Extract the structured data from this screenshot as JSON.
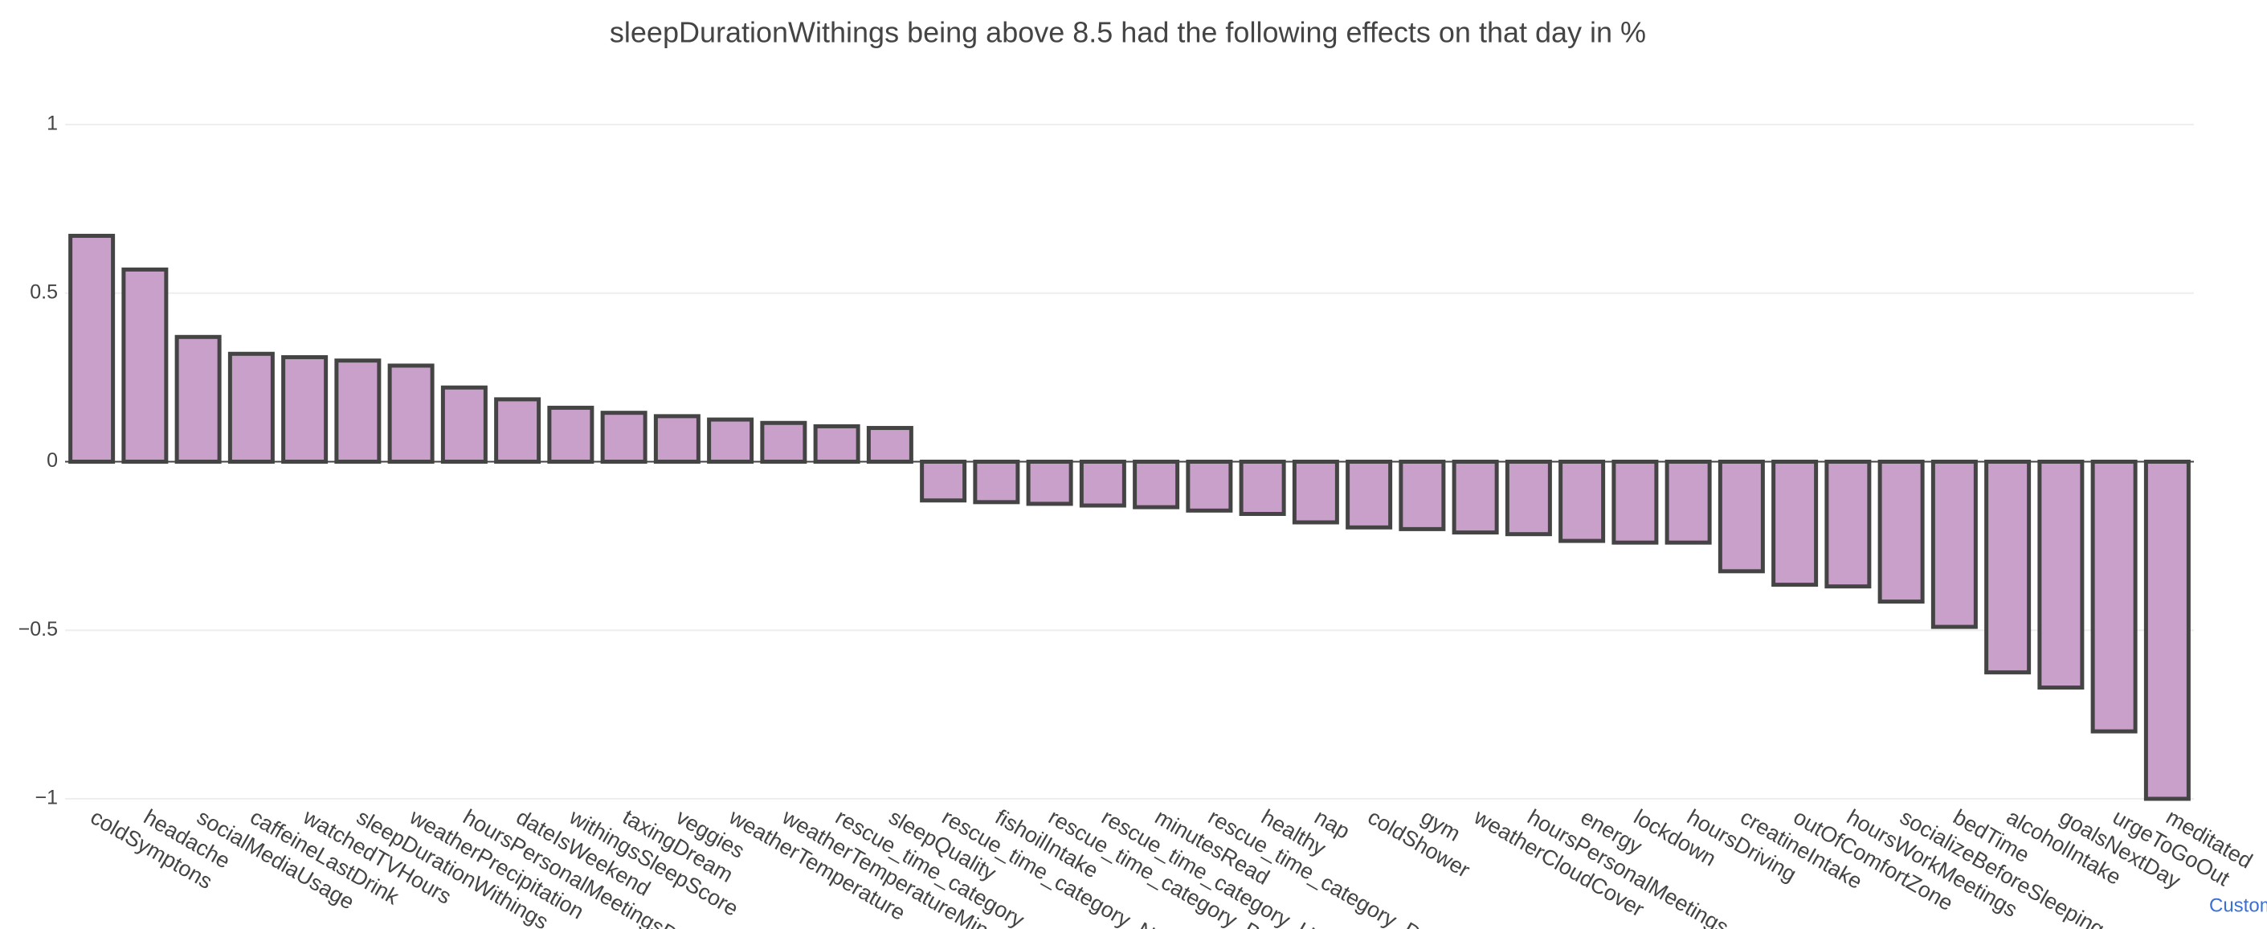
{
  "chart_data": {
    "type": "bar",
    "title": "sleepDurationWithings being above 8.5 had the following effects on that day in %",
    "categories": [
      "coldSymptons",
      "headache",
      "socialMediaUsage",
      "caffeineLastDrink",
      "watchedTVHours",
      "sleepDurationWithings",
      "weatherPrecipitation",
      "hoursPersonalMeetingsD",
      "dateIsWeekend",
      "withingsSleepScore",
      "taxingDream",
      "veggies",
      "weatherTemperature",
      "weatherTemperatureMin",
      "rescue_time_category",
      "sleepQuality",
      "rescue_time_category_N",
      "fishoilIntake",
      "rescue_time_category_B",
      "rescue_time_category_U",
      "minutesRead",
      "rescue_time_category_D",
      "healthy",
      "nap",
      "coldShower",
      "gym",
      "weatherCloudCover",
      "hoursPersonalMeetings",
      "energy",
      "lockdown",
      "hoursDriving",
      "creatineIntake",
      "outOfComfortZone",
      "hoursWorkMeetings",
      "socializeBeforeSleeping",
      "bedTime",
      "alcoholIntake",
      "goalsNextDay",
      "urgeToGoOut",
      "meditated"
    ],
    "values": [
      0.67,
      0.57,
      0.37,
      0.32,
      0.31,
      0.3,
      0.285,
      0.22,
      0.185,
      0.16,
      0.145,
      0.135,
      0.125,
      0.115,
      0.105,
      0.1,
      -0.115,
      -0.12,
      -0.125,
      -0.13,
      -0.135,
      -0.145,
      -0.155,
      -0.18,
      -0.195,
      -0.2,
      -0.21,
      -0.215,
      -0.235,
      -0.24,
      -0.24,
      -0.325,
      -0.365,
      -0.37,
      -0.415,
      -0.49,
      -0.625,
      -0.67,
      -0.8,
      -1.0
    ],
    "color": "#c9a0c9",
    "ylim": [
      -1,
      1
    ],
    "yticks": [
      {
        "value": -1,
        "label": "−1"
      },
      {
        "value": -0.5,
        "label": "−0.5"
      },
      0,
      0.5,
      1
    ],
    "grid": true,
    "link": "Custom"
  }
}
